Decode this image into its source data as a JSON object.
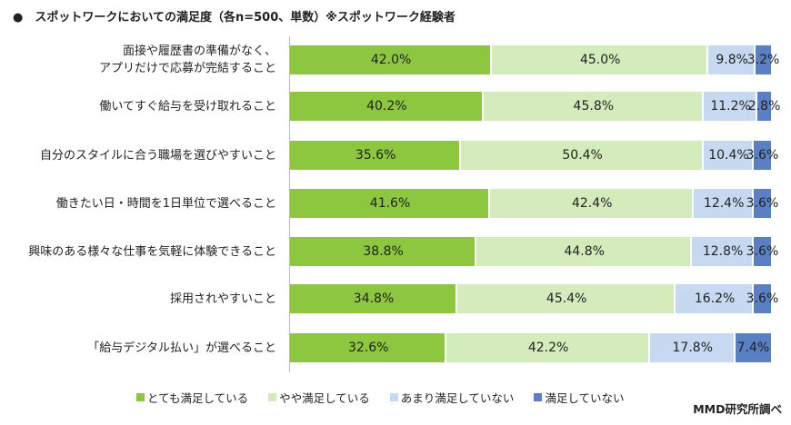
{
  "title": "●　スポットワークにおいての満足度（各n=500、単数）※スポットワーク経験者",
  "source": "MMD研究所調べ",
  "chart_data": {
    "type": "bar",
    "orientation": "horizontal",
    "stacked": true,
    "title": "●　スポットワークにおいての満足度（各n=500、単数）※スポットワーク経験者",
    "xlim": [
      0,
      100
    ],
    "categories": [
      [
        "面接や履歴書の準備がなく、",
        "アプリだけで応募が完結すること"
      ],
      [
        "働いてすぐ給与を受け取れること"
      ],
      [
        "自分のスタイルに合う職場を選びやすいこと"
      ],
      [
        "働きたい日・時間を1日単位で選べること"
      ],
      [
        "興味のある様々な仕事を気軽に体験できること"
      ],
      [
        "採用されやすいこと"
      ],
      [
        "「給与デジタル払い」が選べること"
      ]
    ],
    "series": [
      {
        "name": "とても満足している",
        "color": "#8dc63f",
        "values": [
          42.0,
          40.2,
          35.6,
          41.6,
          38.8,
          34.8,
          32.6
        ]
      },
      {
        "name": "やや満足している",
        "color": "#d4ebbb",
        "values": [
          45.0,
          45.8,
          50.4,
          42.4,
          44.8,
          45.4,
          42.2
        ]
      },
      {
        "name": "あまり満足していない",
        "color": "#c6d9f0",
        "values": [
          9.8,
          11.2,
          10.4,
          12.4,
          12.8,
          16.2,
          17.8
        ]
      },
      {
        "name": "満足していない",
        "color": "#5b7fc3",
        "values": [
          3.2,
          2.8,
          3.6,
          3.6,
          3.6,
          3.6,
          7.4
        ]
      }
    ],
    "legend_position": "bottom",
    "grid": false
  }
}
